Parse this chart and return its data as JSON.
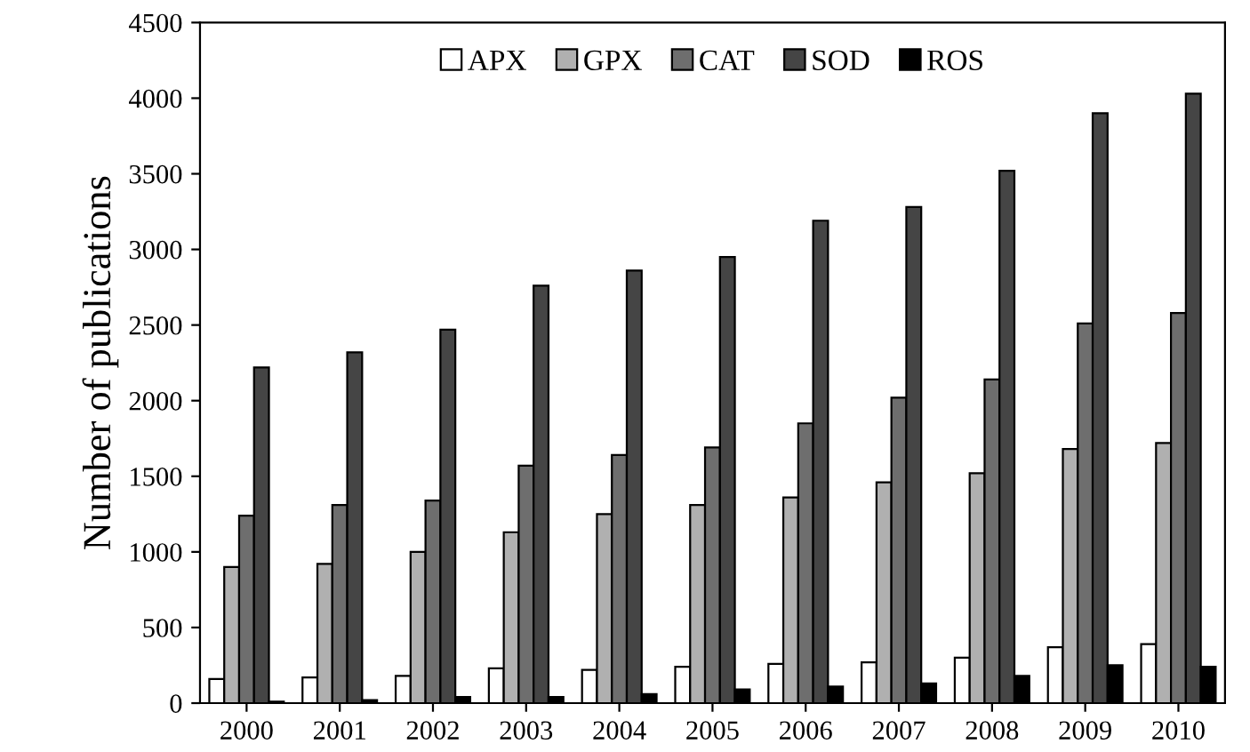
{
  "chart_data": {
    "type": "bar",
    "ylabel": "Number of publications",
    "categories": [
      "2000",
      "2001",
      "2002",
      "2003",
      "2004",
      "2005",
      "2006",
      "2007",
      "2008",
      "2009",
      "2010"
    ],
    "series": [
      {
        "name": "APX",
        "color": "#ffffff",
        "values": [
          160,
          170,
          180,
          230,
          220,
          240,
          260,
          270,
          300,
          370,
          390
        ]
      },
      {
        "name": "GPX",
        "color": "#b0b0b0",
        "values": [
          900,
          920,
          1000,
          1130,
          1250,
          1310,
          1360,
          1460,
          1520,
          1680,
          1720
        ]
      },
      {
        "name": "CAT",
        "color": "#6e6e6e",
        "values": [
          1240,
          1310,
          1340,
          1570,
          1640,
          1690,
          1850,
          2020,
          2140,
          2510,
          2580
        ]
      },
      {
        "name": "SOD",
        "color": "#454545",
        "values": [
          2220,
          2320,
          2470,
          2760,
          2860,
          2950,
          3190,
          3280,
          3520,
          3900,
          4030
        ]
      },
      {
        "name": "ROS",
        "color": "#000000",
        "values": [
          10,
          20,
          40,
          40,
          60,
          90,
          110,
          130,
          180,
          250,
          240
        ]
      }
    ],
    "ylim": [
      0,
      4500
    ],
    "yticks": [
      0,
      500,
      1000,
      1500,
      2000,
      2500,
      3000,
      3500,
      4000,
      4500
    ],
    "legend": "top",
    "grid": false
  }
}
